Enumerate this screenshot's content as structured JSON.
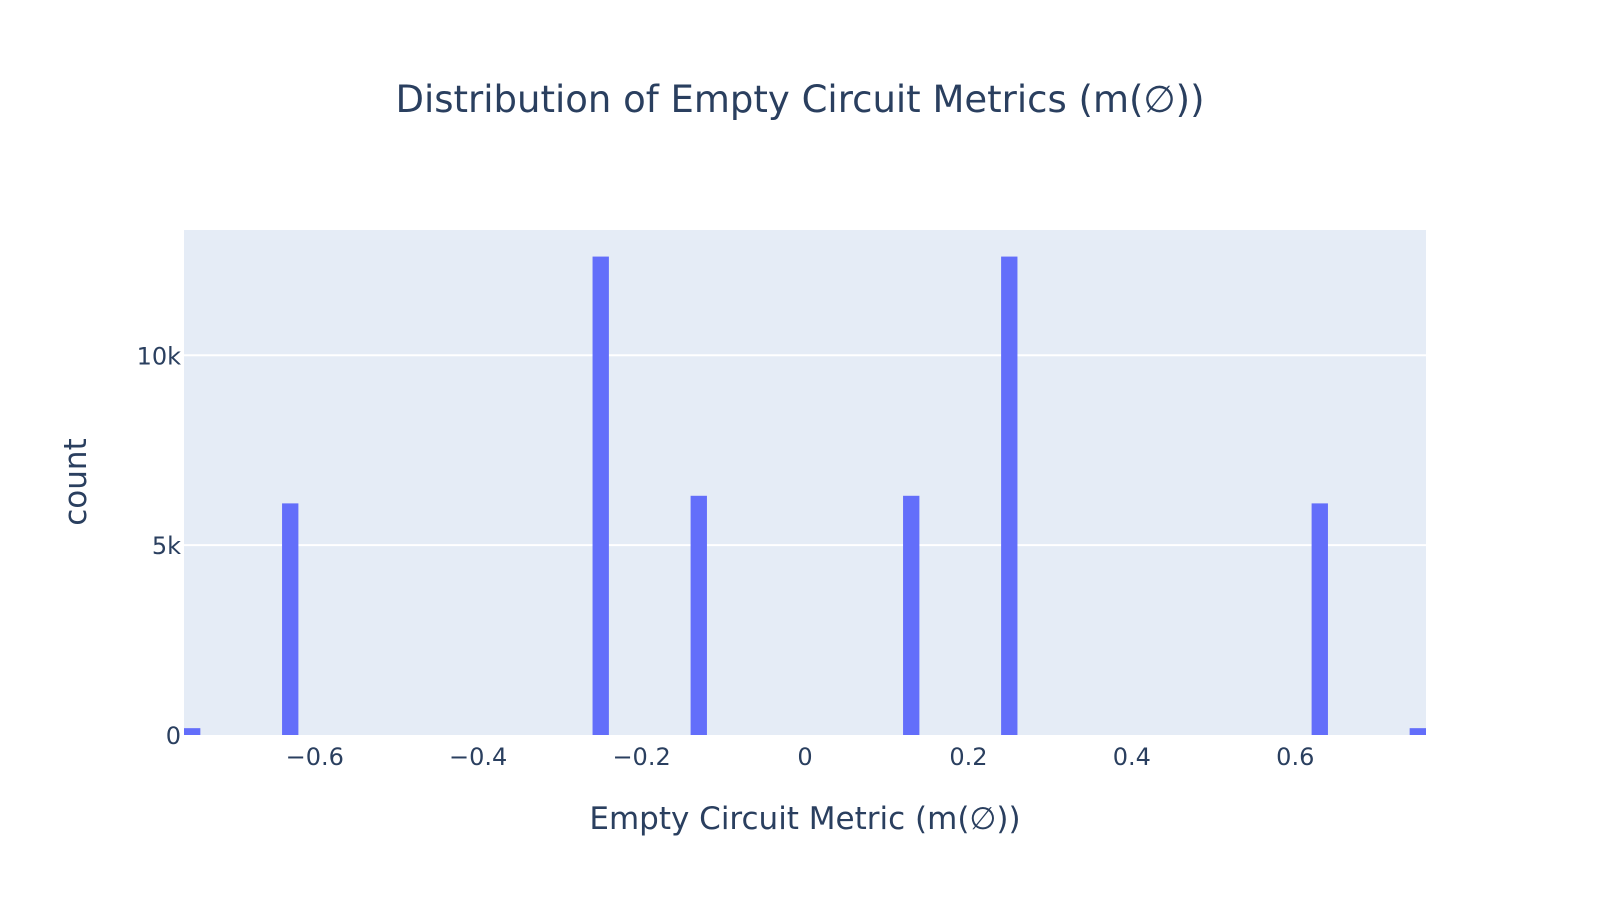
{
  "chart_data": {
    "type": "bar",
    "title": "Distribution of Empty Circuit Metrics (m(∅))",
    "xlabel": "Empty Circuit Metric (m(∅))",
    "ylabel": "count",
    "xlim": [
      -0.76,
      0.76
    ],
    "ylim": [
      0,
      13300
    ],
    "x_ticks": [
      {
        "value": -0.6,
        "label": "−0.6"
      },
      {
        "value": -0.4,
        "label": "−0.4"
      },
      {
        "value": -0.2,
        "label": "−0.2"
      },
      {
        "value": 0,
        "label": "0"
      },
      {
        "value": 0.2,
        "label": "0.2"
      },
      {
        "value": 0.4,
        "label": "0.4"
      },
      {
        "value": 0.6,
        "label": "0.6"
      }
    ],
    "y_ticks": [
      {
        "value": 0,
        "label": "0"
      },
      {
        "value": 5000,
        "label": "5k"
      },
      {
        "value": 10000,
        "label": "10k"
      }
    ],
    "bin_width": 0.02,
    "bins": [
      {
        "x0": -0.76,
        "x1": -0.74,
        "count": 180
      },
      {
        "x0": -0.64,
        "x1": -0.62,
        "count": 6100
      },
      {
        "x0": -0.26,
        "x1": -0.24,
        "count": 12600
      },
      {
        "x0": -0.14,
        "x1": -0.12,
        "count": 6300
      },
      {
        "x0": 0.12,
        "x1": 0.14,
        "count": 6300
      },
      {
        "x0": 0.24,
        "x1": 0.26,
        "count": 12600
      },
      {
        "x0": 0.62,
        "x1": 0.64,
        "count": 6100
      },
      {
        "x0": 0.74,
        "x1": 0.76,
        "count": 180
      }
    ],
    "grid": true,
    "colors": {
      "bar": "#636efa",
      "plot_bg": "#e5ecf6",
      "grid": "#ffffff",
      "text": "#2a3f5f"
    }
  }
}
